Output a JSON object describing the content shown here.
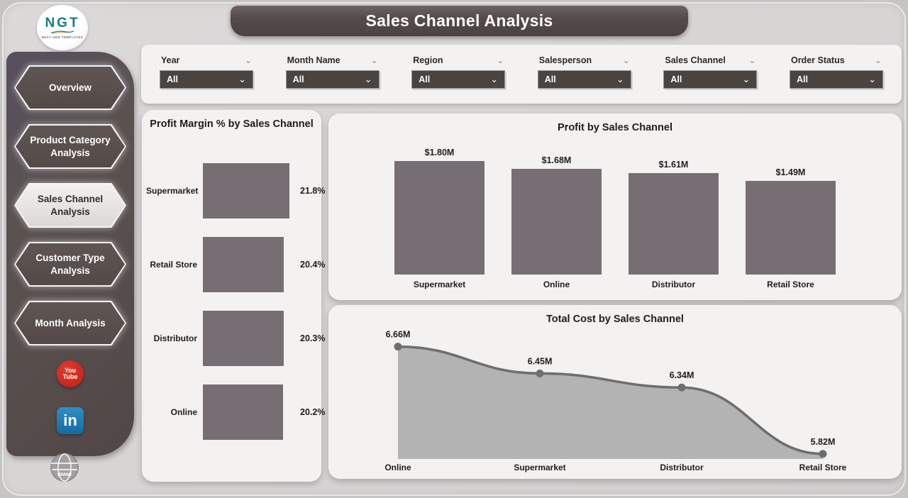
{
  "page": {
    "title": "Sales Channel Analysis"
  },
  "logo": {
    "text": "NGT",
    "subtext": "NEXT GEN TEMPLATES"
  },
  "sidebar": {
    "items": [
      {
        "label": "Overview",
        "selected": false
      },
      {
        "label": "Product Category Analysis",
        "selected": false
      },
      {
        "label": "Sales Channel Analysis",
        "selected": true
      },
      {
        "label": "Customer Type Analysis",
        "selected": false
      },
      {
        "label": "Month Analysis",
        "selected": false
      }
    ],
    "social": {
      "youtube_line1": "You",
      "youtube_line2": "Tube",
      "linkedin_text": "in",
      "website_text": "www"
    }
  },
  "filters": [
    {
      "label": "Year",
      "value": "All"
    },
    {
      "label": "Month Name",
      "value": "All"
    },
    {
      "label": "Region",
      "value": "All"
    },
    {
      "label": "Salesperson",
      "value": "All"
    },
    {
      "label": "Sales Channel",
      "value": "All"
    },
    {
      "label": "Order Status",
      "value": "All"
    }
  ],
  "colors": {
    "accent_dark": "#4c4242",
    "bar_fill": "#776e74",
    "area_fill": "#b4b3b3",
    "area_line": "#6f6e6e",
    "dropdown_bg": "#494440",
    "youtube_red": "#c01d15",
    "linkedin_blue": "#1d79b5",
    "panel_bg": "#f3f2f1",
    "text_dark": "#1f1c1c"
  },
  "chart_data": [
    {
      "type": "bar",
      "orientation": "horizontal",
      "title": "Profit Margin % by Sales Channel",
      "categories": [
        "Supermarket",
        "Retail Store",
        "Distributor",
        "Online"
      ],
      "values": [
        21.8,
        20.4,
        20.3,
        20.2
      ],
      "labels": [
        "21.8%",
        "20.4%",
        "20.3%",
        "20.2%"
      ],
      "xlabel": "",
      "ylabel": "",
      "xlim": [
        0,
        21.8
      ],
      "grid": false,
      "legend": "none"
    },
    {
      "type": "bar",
      "orientation": "vertical",
      "title": "Profit by Sales Channel",
      "categories": [
        "Supermarket",
        "Online",
        "Distributor",
        "Retail Store"
      ],
      "values": [
        1.8,
        1.68,
        1.61,
        1.49
      ],
      "labels": [
        "$1.80M",
        "$1.68M",
        "$1.61M",
        "$1.49M"
      ],
      "xlabel": "",
      "ylabel": "",
      "ylim": [
        0,
        1.8
      ],
      "grid": false,
      "legend": "none"
    },
    {
      "type": "area",
      "title": "Total Cost by Sales Channel",
      "categories": [
        "Online",
        "Supermarket",
        "Distributor",
        "Retail Store"
      ],
      "values": [
        6.66,
        6.45,
        6.34,
        5.82
      ],
      "labels": [
        "6.66M",
        "6.45M",
        "6.34M",
        "5.82M"
      ],
      "xlabel": "",
      "ylabel": "",
      "ylim": [
        5.78,
        6.9
      ],
      "grid": false,
      "legend": "none"
    }
  ]
}
